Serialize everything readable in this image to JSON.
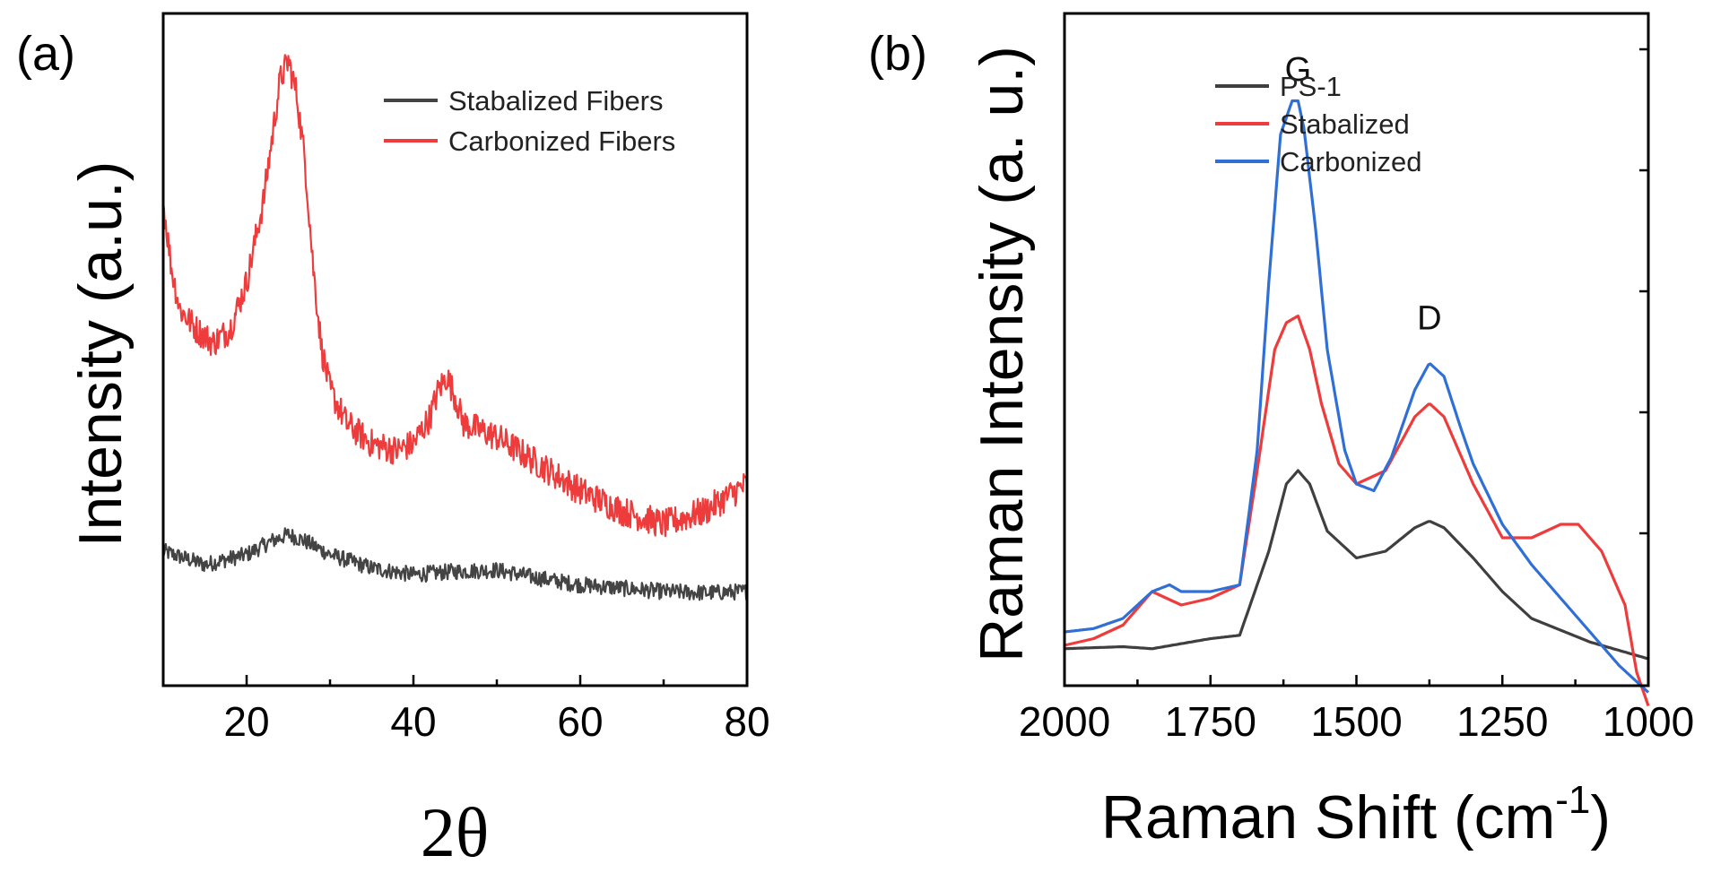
{
  "chart_data": [
    {
      "type": "line",
      "panel_label": "(a)",
      "xlabel": "2θ",
      "ylabel": "Intensity (a.u.)",
      "xlim": [
        10,
        80
      ],
      "ylim": [
        0,
        1
      ],
      "x_ticks": [
        20,
        40,
        60,
        80
      ],
      "y_ticks_labeled": false,
      "legend_position": "top-right",
      "series": [
        {
          "name": "Stabalized Fibers",
          "color": "#444444",
          "x": [
            10,
            15,
            20,
            23,
            25,
            27,
            30,
            35,
            40,
            45,
            50,
            55,
            60,
            65,
            70,
            75,
            80
          ],
          "y": [
            0.2,
            0.18,
            0.195,
            0.215,
            0.225,
            0.215,
            0.195,
            0.175,
            0.165,
            0.17,
            0.172,
            0.16,
            0.15,
            0.145,
            0.14,
            0.138,
            0.14
          ]
        },
        {
          "name": "Carbonized Fibers",
          "color": "#ee3b3b",
          "x": [
            10,
            11,
            12,
            14,
            16,
            18,
            20,
            22,
            23,
            24,
            25,
            26,
            27,
            28,
            29,
            30,
            32,
            35,
            38,
            40,
            42,
            43,
            44,
            45,
            46,
            48,
            50,
            55,
            60,
            65,
            70,
            75,
            80
          ],
          "y": [
            0.72,
            0.62,
            0.56,
            0.53,
            0.51,
            0.53,
            0.6,
            0.72,
            0.81,
            0.9,
            0.93,
            0.88,
            0.78,
            0.62,
            0.5,
            0.44,
            0.39,
            0.36,
            0.35,
            0.36,
            0.4,
            0.44,
            0.46,
            0.43,
            0.39,
            0.38,
            0.37,
            0.33,
            0.29,
            0.26,
            0.24,
            0.26,
            0.3
          ]
        }
      ]
    },
    {
      "type": "line",
      "panel_label": "(b)",
      "xlabel": "Raman Shift (cm",
      "xlabel_superscript": "-1",
      "xlabel_suffix": ")",
      "ylabel": "Raman Intensity (a. u.)",
      "xlim": [
        2000,
        1000
      ],
      "ylim": [
        0,
        1
      ],
      "x_ticks": [
        2000,
        1750,
        1500,
        1250,
        1000
      ],
      "y_ticks_labeled": false,
      "legend_position": "top-right",
      "annotations": [
        {
          "text": "G",
          "x": 1600,
          "y": 0.9
        },
        {
          "text": "D",
          "x": 1375,
          "y": 0.53
        }
      ],
      "series": [
        {
          "name": "PS-1",
          "color": "#3f3f3f",
          "x": [
            2000,
            1900,
            1850,
            1750,
            1700,
            1650,
            1620,
            1600,
            1580,
            1550,
            1500,
            1450,
            1400,
            1375,
            1350,
            1300,
            1250,
            1200,
            1100,
            1000
          ],
          "y": [
            0.055,
            0.058,
            0.055,
            0.07,
            0.075,
            0.2,
            0.3,
            0.32,
            0.3,
            0.23,
            0.19,
            0.2,
            0.235,
            0.245,
            0.235,
            0.19,
            0.14,
            0.1,
            0.065,
            0.04
          ]
        },
        {
          "name": "Stabalized",
          "color": "#ee3b3b",
          "x": [
            2000,
            1950,
            1900,
            1850,
            1800,
            1750,
            1700,
            1670,
            1640,
            1620,
            1600,
            1580,
            1560,
            1530,
            1500,
            1450,
            1400,
            1375,
            1350,
            1300,
            1250,
            1200,
            1150,
            1120,
            1080,
            1040,
            1020,
            1000
          ],
          "y": [
            0.06,
            0.07,
            0.09,
            0.14,
            0.12,
            0.13,
            0.15,
            0.32,
            0.5,
            0.54,
            0.55,
            0.5,
            0.42,
            0.33,
            0.3,
            0.32,
            0.4,
            0.42,
            0.4,
            0.3,
            0.22,
            0.22,
            0.24,
            0.24,
            0.2,
            0.12,
            0.02,
            -0.03
          ]
        },
        {
          "name": "Carbonized",
          "color": "#2f6fd6",
          "x": [
            2000,
            1950,
            1900,
            1850,
            1820,
            1800,
            1750,
            1700,
            1670,
            1650,
            1630,
            1610,
            1600,
            1590,
            1570,
            1550,
            1520,
            1500,
            1470,
            1440,
            1400,
            1375,
            1350,
            1320,
            1300,
            1250,
            1200,
            1150,
            1100,
            1050,
            1000
          ],
          "y": [
            0.08,
            0.085,
            0.1,
            0.14,
            0.15,
            0.14,
            0.14,
            0.15,
            0.35,
            0.6,
            0.82,
            0.87,
            0.87,
            0.83,
            0.68,
            0.5,
            0.35,
            0.3,
            0.29,
            0.34,
            0.44,
            0.48,
            0.46,
            0.38,
            0.33,
            0.24,
            0.18,
            0.13,
            0.08,
            0.03,
            -0.01
          ]
        }
      ]
    }
  ]
}
